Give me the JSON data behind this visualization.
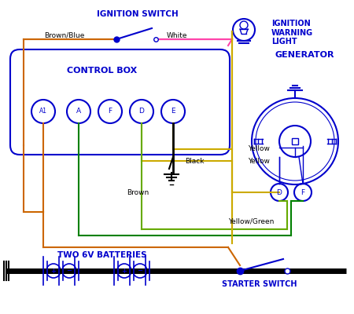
{
  "bg_color": "#ffffff",
  "blue": "#0000cc",
  "orange_brown": "#cc6600",
  "green": "#008000",
  "yellow": "#ccaa00",
  "yellow_green": "#66aa00",
  "black": "#000000",
  "magenta": "#ff00cc",
  "pink": "#ff44aa",
  "labels": {
    "ignition_switch": "IGNITION SWITCH",
    "ignition_warning": "IGNITION\nWARNING\nLIGHT",
    "generator": "GENERATOR",
    "control_box": "CONTROL BOX",
    "two_batteries": "TWO 6V BATTERIES",
    "starter_switch": "STARTER SWITCH",
    "brown_blue": "Brown/Blue",
    "white": "White",
    "black_lbl": "Black",
    "yellow1": "Yellow",
    "yellow2": "Yellow",
    "yellow_green_lbl": "Yellow/Green",
    "brown_lbl": "Brown"
  }
}
